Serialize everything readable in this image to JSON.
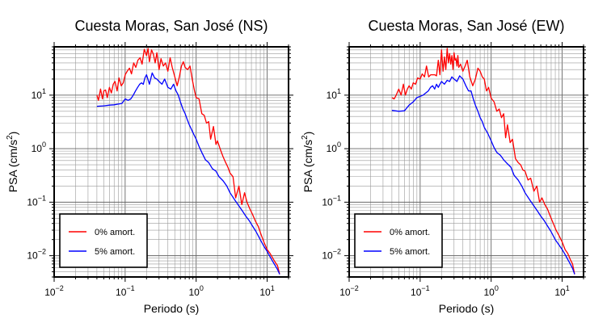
{
  "chart_data": [
    {
      "type": "line",
      "title": "Cuesta Moras, San José (NS)",
      "xlabel": "Periodo (s)",
      "ylabel_main": "PSA (cm/s",
      "ylabel_sup": "2",
      "ylabel_close": ")",
      "xscale": "log",
      "yscale": "log",
      "xlim": [
        0.01,
        20
      ],
      "ylim": [
        0.004,
        80
      ],
      "grid": true,
      "legend_position": "bottom-left",
      "xticks": [
        {
          "value": 0.01,
          "base": "10",
          "exp": "−2"
        },
        {
          "value": 0.1,
          "base": "10",
          "exp": "−1"
        },
        {
          "value": 1,
          "base": "10",
          "exp": "0"
        },
        {
          "value": 10,
          "base": "10",
          "exp": "1"
        }
      ],
      "yticks": [
        {
          "value": 0.01,
          "base": "10",
          "exp": "−2"
        },
        {
          "value": 0.1,
          "base": "10",
          "exp": "−1"
        },
        {
          "value": 1,
          "base": "10",
          "exp": "0"
        },
        {
          "value": 10,
          "base": "10",
          "exp": "1"
        }
      ],
      "series": [
        {
          "name": "0% amort.",
          "color": "#ff0000",
          "x": [
            0.04,
            0.042,
            0.045,
            0.048,
            0.05,
            0.053,
            0.056,
            0.06,
            0.064,
            0.068,
            0.072,
            0.077,
            0.082,
            0.088,
            0.094,
            0.1,
            0.107,
            0.115,
            0.123,
            0.132,
            0.141,
            0.151,
            0.162,
            0.173,
            0.186,
            0.2,
            0.21,
            0.22,
            0.235,
            0.25,
            0.265,
            0.28,
            0.3,
            0.32,
            0.345,
            0.37,
            0.4,
            0.43,
            0.46,
            0.5,
            0.54,
            0.58,
            0.62,
            0.66,
            0.7,
            0.76,
            0.82,
            0.88,
            0.95,
            1.0,
            1.1,
            1.2,
            1.3,
            1.4,
            1.5,
            1.6,
            1.75,
            1.9,
            2.0,
            2.2,
            2.4,
            2.6,
            2.8,
            3.0,
            3.3,
            3.6,
            4.0,
            4.4,
            4.8,
            5.2,
            5.7,
            6.2,
            6.8,
            7.5,
            8.2,
            9.0,
            10.0,
            11.0,
            12.0,
            13.0,
            14.0,
            15.0
          ],
          "y": [
            10,
            8,
            13,
            8.5,
            12,
            12.5,
            9,
            14,
            11,
            16,
            18,
            12,
            21,
            15,
            17,
            24,
            28,
            32,
            25,
            40,
            33,
            45,
            50,
            38,
            72,
            55,
            75,
            42,
            70,
            58,
            40,
            62,
            30,
            48,
            35,
            40,
            28,
            50,
            33,
            22,
            15,
            22,
            35,
            42,
            33,
            30,
            35,
            20,
            12,
            9,
            8.5,
            4.5,
            4.2,
            3.0,
            3.2,
            1.5,
            2.6,
            1.2,
            1.4,
            0.95,
            0.7,
            0.55,
            0.45,
            0.35,
            0.3,
            0.12,
            0.2,
            0.09,
            0.15,
            0.1,
            0.075,
            0.06,
            0.045,
            0.035,
            0.025,
            0.018,
            0.013,
            0.011,
            0.009,
            0.0075,
            0.0065,
            0.0045
          ]
        },
        {
          "name": "5% amort.",
          "color": "#0000ff",
          "x": [
            0.04,
            0.05,
            0.06,
            0.07,
            0.08,
            0.09,
            0.1,
            0.11,
            0.12,
            0.13,
            0.14,
            0.15,
            0.16,
            0.17,
            0.18,
            0.19,
            0.2,
            0.22,
            0.24,
            0.26,
            0.28,
            0.3,
            0.33,
            0.36,
            0.4,
            0.44,
            0.48,
            0.52,
            0.56,
            0.6,
            0.65,
            0.7,
            0.75,
            0.8,
            0.9,
            1.0,
            1.1,
            1.2,
            1.35,
            1.5,
            1.7,
            1.9,
            2.1,
            2.4,
            2.7,
            3.0,
            3.5,
            4.0,
            4.5,
            5.0,
            5.6,
            6.3,
            7.0,
            8.0,
            9.0,
            10.0,
            11.0,
            12.0,
            13.0,
            14.0,
            15.0
          ],
          "y": [
            6.2,
            6.3,
            6.5,
            6.6,
            6.8,
            7.0,
            8.5,
            8.0,
            8.5,
            10,
            12,
            14,
            16,
            17,
            16,
            21,
            24,
            16,
            26,
            21,
            20,
            18,
            16,
            20,
            14,
            13,
            16,
            12,
            10,
            7.5,
            5.5,
            4.5,
            3.5,
            2.8,
            2.0,
            1.5,
            1.1,
            0.85,
            0.62,
            0.55,
            0.42,
            0.38,
            0.3,
            0.25,
            0.2,
            0.15,
            0.11,
            0.085,
            0.068,
            0.055,
            0.045,
            0.035,
            0.028,
            0.02,
            0.015,
            0.012,
            0.0095,
            0.0078,
            0.0065,
            0.0055,
            0.0045
          ]
        }
      ]
    },
    {
      "type": "line",
      "title": "Cuesta Moras, San José (EW)",
      "xlabel": "Periodo (s)",
      "ylabel_main": "PSA (cm/s",
      "ylabel_sup": "2",
      "ylabel_close": ")",
      "xscale": "log",
      "yscale": "log",
      "xlim": [
        0.01,
        20
      ],
      "ylim": [
        0.004,
        80
      ],
      "grid": true,
      "legend_position": "bottom-left",
      "xticks": [
        {
          "value": 0.01,
          "base": "10",
          "exp": "−2"
        },
        {
          "value": 0.1,
          "base": "10",
          "exp": "−1"
        },
        {
          "value": 1,
          "base": "10",
          "exp": "0"
        },
        {
          "value": 10,
          "base": "10",
          "exp": "1"
        }
      ],
      "yticks": [
        {
          "value": 0.01,
          "base": "10",
          "exp": "−2"
        },
        {
          "value": 0.1,
          "base": "10",
          "exp": "−1"
        },
        {
          "value": 1,
          "base": "10",
          "exp": "0"
        },
        {
          "value": 10,
          "base": "10",
          "exp": "1"
        }
      ],
      "series": [
        {
          "name": "0% amort.",
          "color": "#ff0000",
          "x": [
            0.04,
            0.043,
            0.046,
            0.05,
            0.054,
            0.058,
            0.062,
            0.066,
            0.07,
            0.075,
            0.08,
            0.086,
            0.092,
            0.1,
            0.107,
            0.115,
            0.123,
            0.132,
            0.141,
            0.15,
            0.16,
            0.17,
            0.18,
            0.19,
            0.2,
            0.21,
            0.22,
            0.23,
            0.24,
            0.25,
            0.26,
            0.27,
            0.28,
            0.29,
            0.3,
            0.31,
            0.32,
            0.33,
            0.34,
            0.35,
            0.37,
            0.4,
            0.43,
            0.46,
            0.5,
            0.55,
            0.6,
            0.65,
            0.7,
            0.75,
            0.8,
            0.86,
            0.92,
            1.0,
            1.1,
            1.2,
            1.3,
            1.4,
            1.5,
            1.6,
            1.7,
            1.85,
            2.0,
            2.2,
            2.4,
            2.6,
            2.8,
            3.0,
            3.3,
            3.6,
            4.0,
            4.4,
            4.8,
            5.2,
            5.7,
            6.2,
            6.8,
            7.5,
            8.2,
            9.0,
            10.0,
            11.0,
            12.0,
            13.0,
            14.0,
            15.0
          ],
          "y": [
            9,
            8.5,
            10,
            13,
            10,
            16,
            10,
            13,
            15,
            13,
            17,
            16,
            21,
            20,
            25,
            22,
            35,
            22,
            24,
            24,
            24,
            23,
            45,
            24,
            70,
            28,
            52,
            30,
            75,
            40,
            60,
            38,
            55,
            30,
            62,
            45,
            48,
            35,
            55,
            33,
            38,
            28,
            35,
            45,
            22,
            15,
            20,
            32,
            28,
            22,
            20,
            12,
            14,
            8.8,
            7.5,
            5.0,
            5.5,
            3.8,
            4.5,
            1.6,
            2.8,
            1.3,
            1.5,
            0.65,
            0.55,
            0.5,
            0.4,
            0.38,
            0.26,
            0.28,
            0.16,
            0.2,
            0.1,
            0.12,
            0.09,
            0.075,
            0.055,
            0.04,
            0.03,
            0.024,
            0.018,
            0.013,
            0.011,
            0.0085,
            0.007,
            0.0045
          ]
        },
        {
          "name": "5% amort.",
          "color": "#0000ff",
          "x": [
            0.04,
            0.05,
            0.06,
            0.07,
            0.08,
            0.09,
            0.1,
            0.11,
            0.12,
            0.13,
            0.14,
            0.15,
            0.16,
            0.17,
            0.18,
            0.19,
            0.2,
            0.22,
            0.24,
            0.26,
            0.28,
            0.3,
            0.33,
            0.36,
            0.4,
            0.44,
            0.48,
            0.52,
            0.56,
            0.6,
            0.65,
            0.7,
            0.75,
            0.8,
            0.9,
            1.0,
            1.1,
            1.2,
            1.35,
            1.5,
            1.7,
            1.9,
            2.1,
            2.4,
            2.7,
            3.0,
            3.5,
            4.0,
            4.5,
            5.0,
            5.6,
            6.3,
            7.0,
            8.0,
            9.0,
            10.0,
            11.0,
            12.0,
            13.0,
            14.0,
            15.0
          ],
          "y": [
            5.2,
            5.0,
            5.1,
            6.5,
            7.5,
            9,
            9.5,
            10,
            11,
            12,
            14,
            15,
            13,
            16,
            14,
            16,
            18,
            16,
            19,
            18,
            22,
            20,
            18,
            23,
            20,
            15,
            12,
            12,
            8.5,
            6.5,
            5.0,
            3.8,
            3.2,
            2.5,
            1.9,
            1.4,
            1.05,
            0.85,
            0.75,
            0.62,
            0.52,
            0.45,
            0.32,
            0.26,
            0.2,
            0.15,
            0.11,
            0.085,
            0.068,
            0.055,
            0.045,
            0.035,
            0.028,
            0.02,
            0.016,
            0.013,
            0.0105,
            0.0085,
            0.007,
            0.0058,
            0.0045
          ]
        }
      ]
    }
  ]
}
